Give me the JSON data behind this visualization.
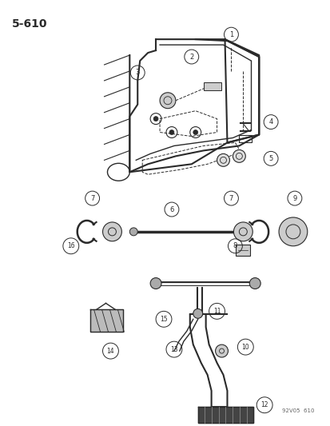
{
  "title": "5-610",
  "watermark": "92V05  610",
  "bg_color": "#ffffff",
  "fig_width": 4.14,
  "fig_height": 5.33,
  "dpi": 100
}
